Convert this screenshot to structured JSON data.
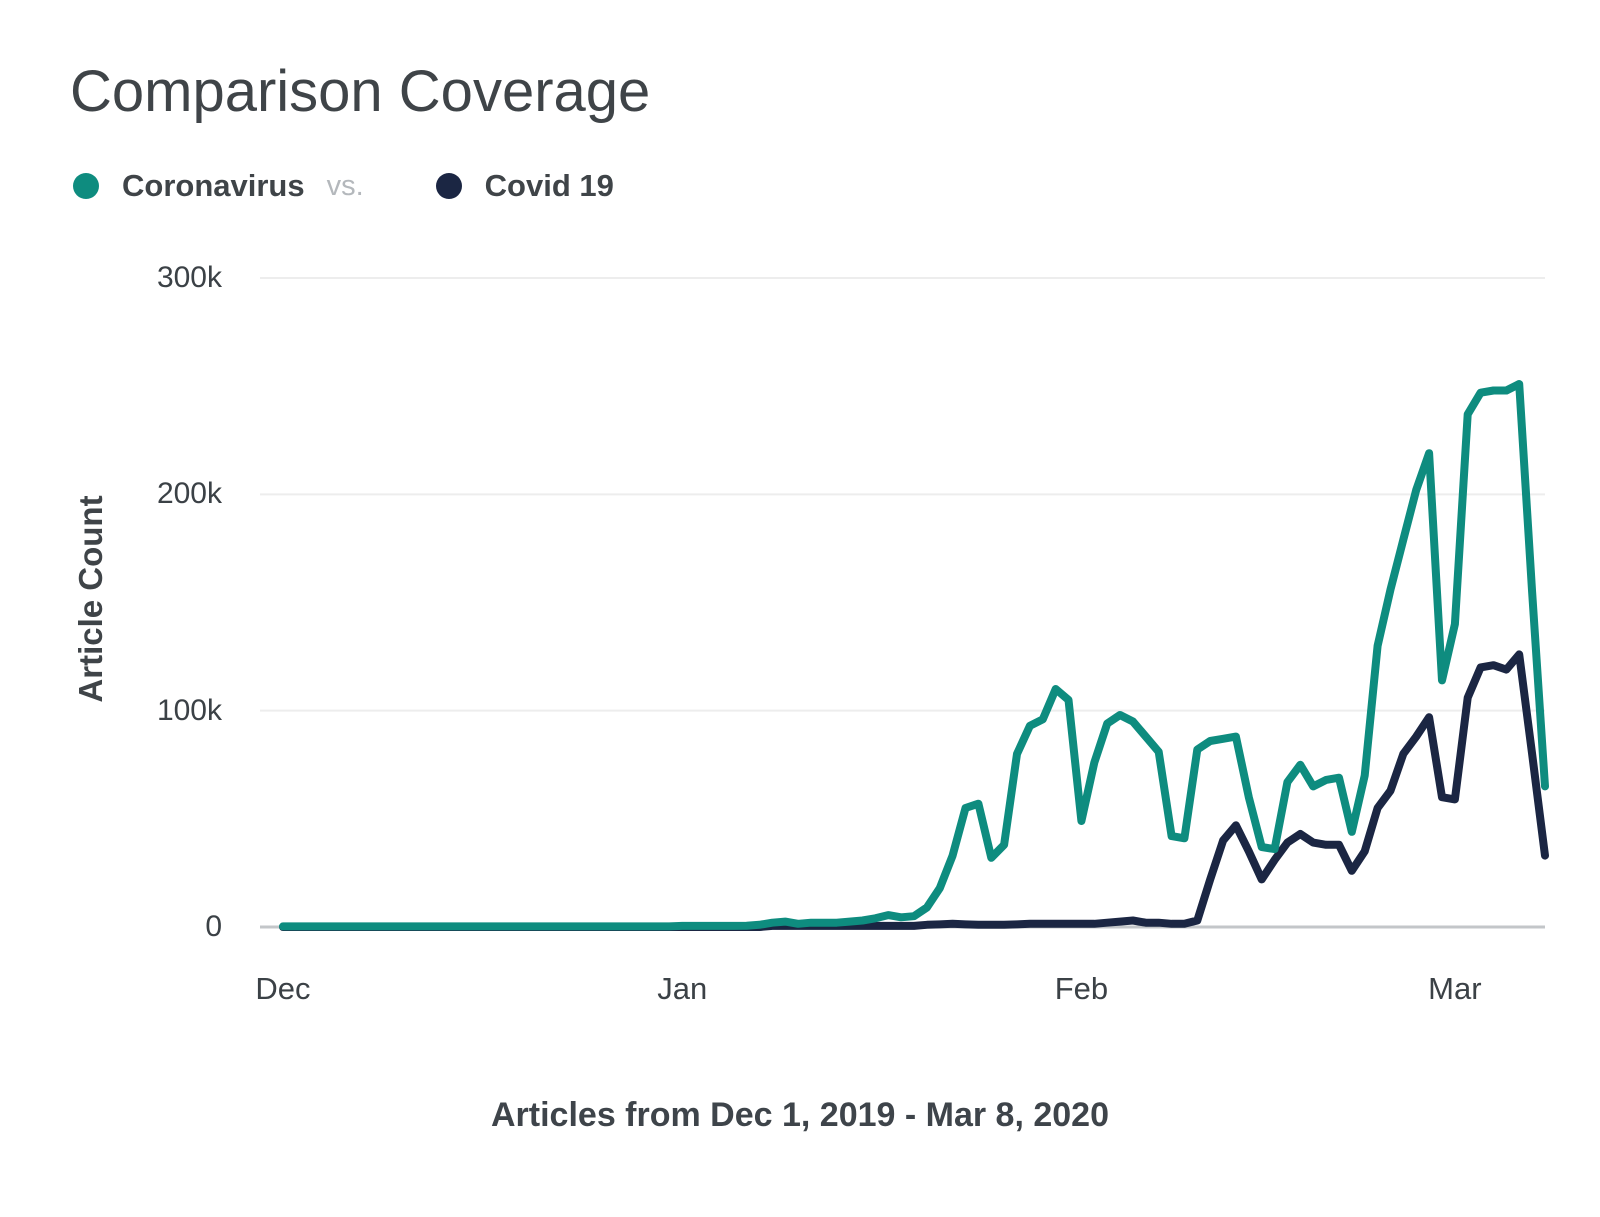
{
  "title": "Comparison Coverage",
  "legend": {
    "series1_label": "Coronavirus",
    "separator": "vs.",
    "series2_label": "Covid 19"
  },
  "colors": {
    "coronavirus": "#0E8C7F",
    "covid19": "#1B2643",
    "title_text": "#3F4448",
    "tick_text": "#3B4146",
    "vs_text": "#B4B8BC",
    "gridline": "#EDEDED",
    "zero_line": "#C3C6C9",
    "background": "#FFFFFF"
  },
  "y_axis": {
    "label": "Article Count",
    "ticks": [
      {
        "label": "0",
        "value": 0
      },
      {
        "label": "100k",
        "value": 100000
      },
      {
        "label": "200k",
        "value": 200000
      },
      {
        "label": "300k",
        "value": 300000
      }
    ]
  },
  "x_axis": {
    "months": [
      {
        "label": "Dec",
        "day": 0
      },
      {
        "label": "Jan",
        "day": 31
      },
      {
        "label": "Feb",
        "day": 62
      },
      {
        "label": "Mar",
        "day": 91
      }
    ]
  },
  "caption": "Articles from Dec 1, 2019 - Mar 8, 2020",
  "chart_data": {
    "type": "line",
    "title": "Comparison Coverage",
    "ylabel": "Article Count",
    "ylim": [
      0,
      300000
    ],
    "y_tick_labels": [
      "0",
      "100k",
      "200k",
      "300k"
    ],
    "x_range_label": "Articles from Dec 1, 2019 - Mar 8, 2020",
    "x_unit": "day",
    "x_month_ticks": [
      "Dec",
      "Jan",
      "Feb",
      "Mar"
    ],
    "grid": "horizontal-only",
    "legend_position": "top-left",
    "series": [
      {
        "name": "Coronavirus",
        "color": "#0E8C7F",
        "values": [
          300,
          300,
          300,
          300,
          300,
          300,
          300,
          300,
          300,
          300,
          300,
          300,
          300,
          300,
          300,
          300,
          300,
          300,
          300,
          300,
          300,
          300,
          300,
          300,
          300,
          300,
          300,
          300,
          300,
          300,
          300,
          500,
          500,
          500,
          500,
          500,
          600,
          1000,
          2000,
          2500,
          1500,
          2000,
          2000,
          2000,
          2500,
          3000,
          4000,
          5500,
          4500,
          5000,
          9000,
          18000,
          33000,
          55000,
          57000,
          32000,
          38000,
          80000,
          93000,
          96000,
          110000,
          105000,
          49000,
          76000,
          94000,
          98000,
          95000,
          88000,
          81000,
          42000,
          41000,
          82000,
          86000,
          87000,
          88000,
          60000,
          37000,
          36000,
          67000,
          75000,
          65000,
          68000,
          69000,
          44000,
          70000,
          130000,
          156000,
          179000,
          202000,
          219000,
          114000,
          140000,
          237000,
          247000,
          248000,
          248000,
          251000,
          155000,
          65000
        ]
      },
      {
        "name": "Covid 19",
        "color": "#1B2643",
        "values": [
          0,
          0,
          0,
          0,
          0,
          0,
          0,
          0,
          0,
          0,
          0,
          0,
          0,
          0,
          0,
          0,
          0,
          0,
          0,
          0,
          0,
          0,
          0,
          0,
          0,
          0,
          0,
          0,
          0,
          0,
          0,
          0,
          0,
          0,
          0,
          0,
          0,
          0,
          500,
          500,
          500,
          500,
          500,
          500,
          500,
          500,
          500,
          500,
          500,
          500,
          1000,
          1200,
          1500,
          1200,
          1000,
          1000,
          1000,
          1200,
          1500,
          1500,
          1500,
          1500,
          1500,
          1500,
          2000,
          2500,
          3000,
          2000,
          2000,
          1500,
          1500,
          3000,
          22000,
          40000,
          47000,
          35000,
          22000,
          31000,
          39000,
          43000,
          39000,
          38000,
          38000,
          26000,
          35000,
          55000,
          63000,
          80000,
          88000,
          97000,
          60000,
          59000,
          106000,
          120000,
          121000,
          119000,
          126000,
          80000,
          33000
        ]
      }
    ]
  }
}
